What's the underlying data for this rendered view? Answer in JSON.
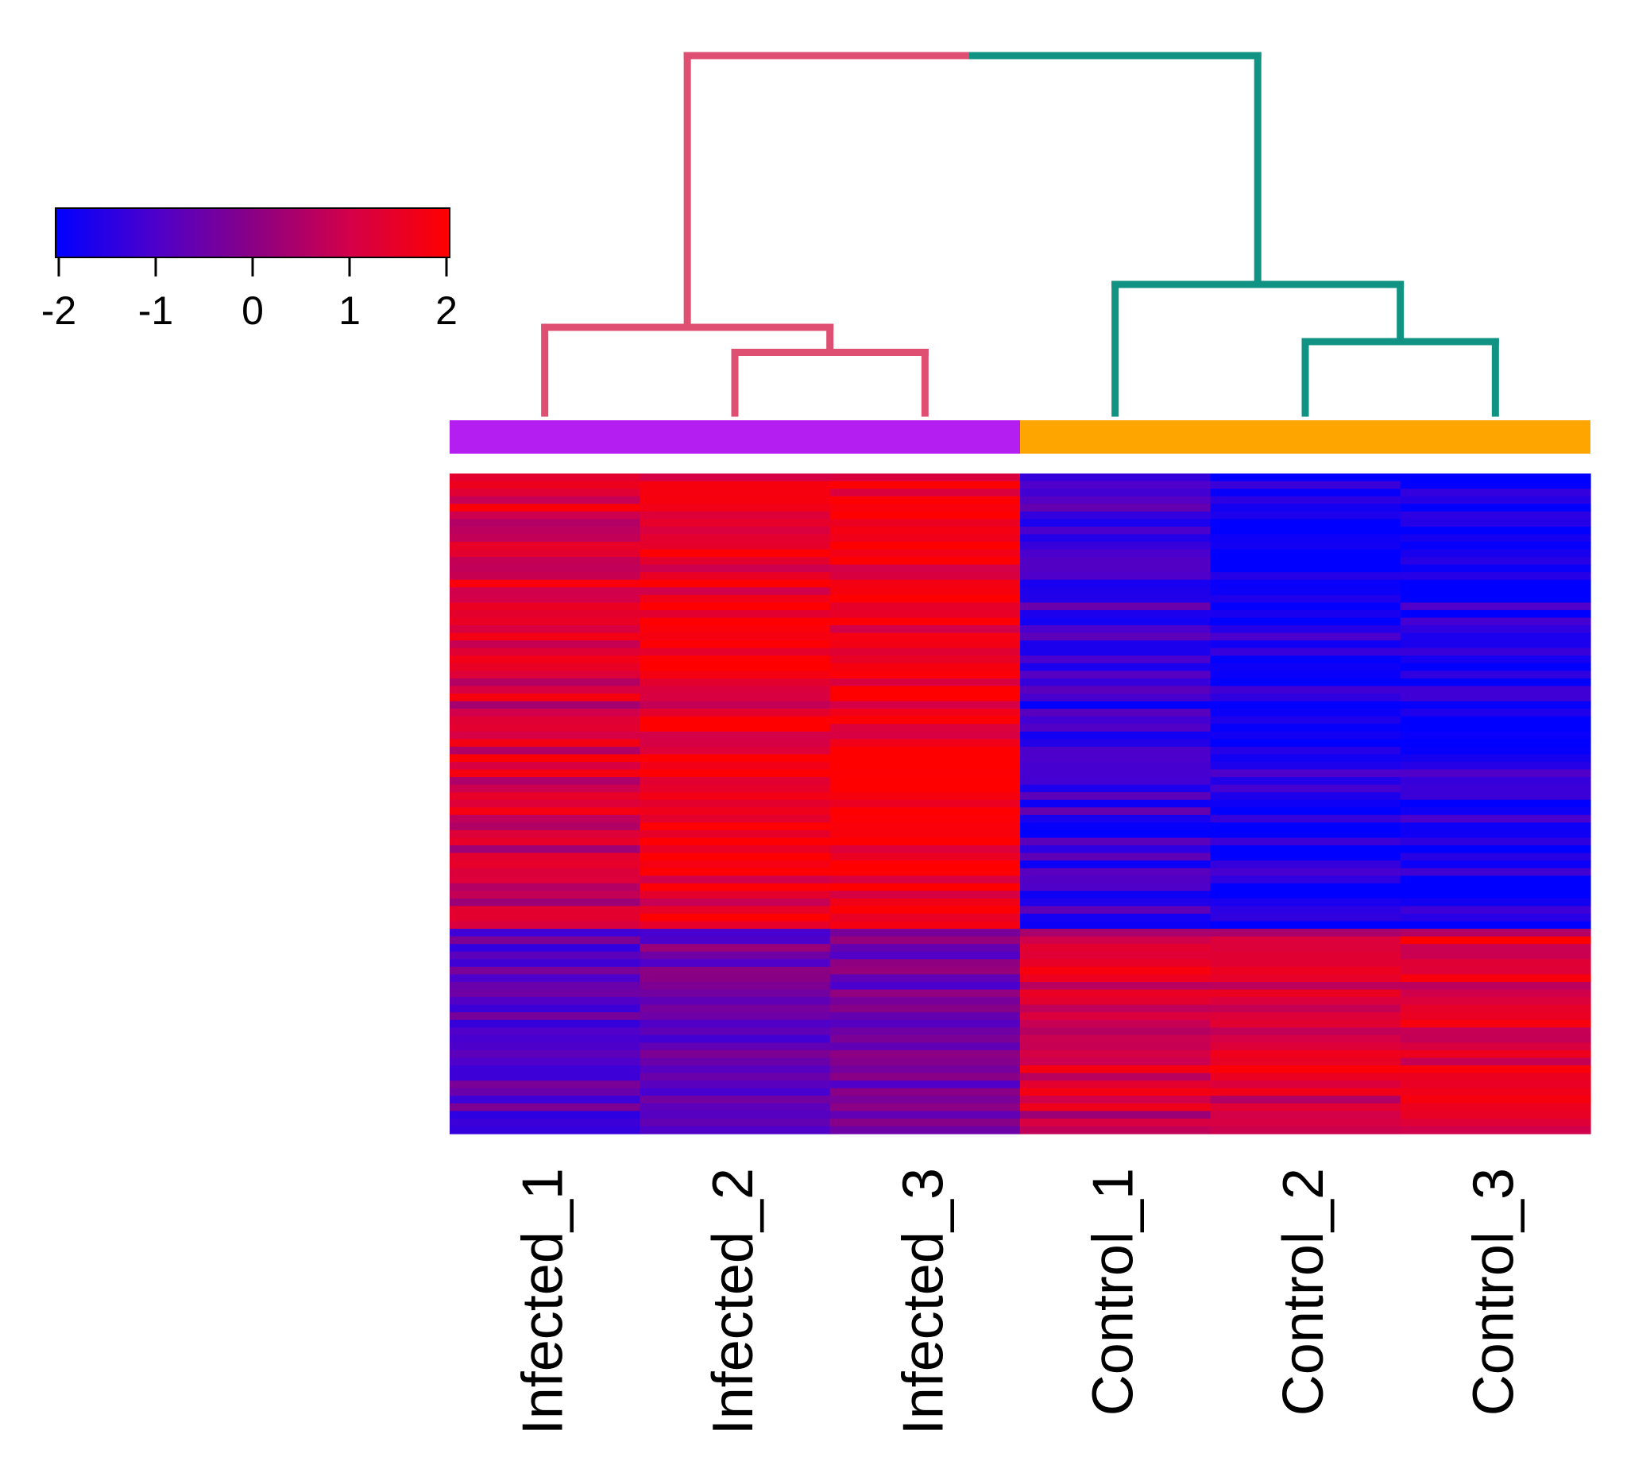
{
  "chart_data": {
    "type": "heatmap",
    "title": "",
    "columns": [
      "Infected_1",
      "Infected_2",
      "Infected_3",
      "Control_1",
      "Control_2",
      "Control_3"
    ],
    "groups": [
      {
        "name": "Infected",
        "color": "#b41ef0",
        "columns": [
          "Infected_1",
          "Infected_2",
          "Infected_3"
        ]
      },
      {
        "name": "Control",
        "color": "#ffa500",
        "columns": [
          "Control_1",
          "Control_2",
          "Control_3"
        ]
      }
    ],
    "dendrogram": {
      "tree": [
        [
          "Infected_1",
          [
            "Infected_2",
            "Infected_3"
          ]
        ],
        [
          "Control_1",
          [
            "Control_2",
            "Control_3"
          ]
        ]
      ],
      "cluster_colors": [
        "#df4f72",
        "#119384"
      ],
      "relative_heights": {
        "root": 1.0,
        "cluster_infected": 0.24,
        "cluster_control": 0.36,
        "pair_infected": 0.17,
        "pair_control": 0.2
      }
    },
    "colorscale": {
      "stops": [
        {
          "value": -2,
          "color": "#0000ff"
        },
        {
          "value": -1,
          "color": "#4d00cc"
        },
        {
          "value": 0,
          "color": "#8a0085"
        },
        {
          "value": 1,
          "color": "#d40048"
        },
        {
          "value": 2,
          "color": "#ff0000"
        }
      ],
      "ticks": [
        "-2",
        "-1",
        "0",
        "1",
        "2"
      ],
      "range": [
        -2,
        2
      ]
    },
    "row_blocks": [
      {
        "rows": 60,
        "mean": [
          1.1,
          1.6,
          1.8,
          -1.3,
          -1.8,
          -1.8
        ]
      },
      {
        "rows": 27,
        "mean": [
          -0.9,
          -0.6,
          -0.4,
          1.0,
          1.1,
          1.3
        ]
      }
    ]
  }
}
